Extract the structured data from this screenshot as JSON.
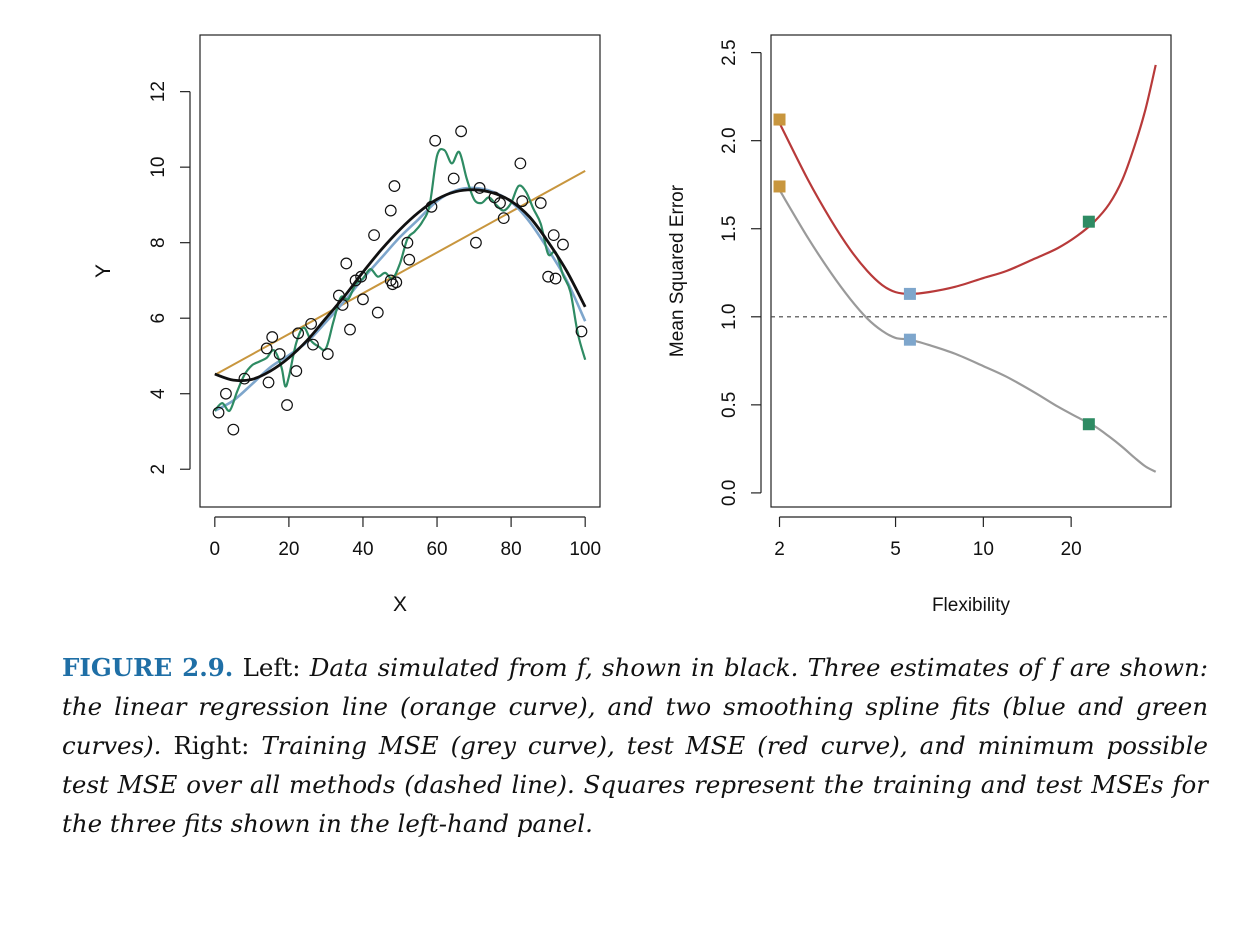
{
  "colors": {
    "orange": "#c8963e",
    "blue": "#7ea6cc",
    "green": "#2e8b63",
    "black": "#111111",
    "red": "#b83a3a",
    "grey": "#9a9a9a",
    "caption_label": "#1f6fa6"
  },
  "caption": {
    "label": "FIGURE 2.9.",
    "left_word": "Left:",
    "left_text": "Data simulated from f, shown in black. Three estimates of f are shown: the linear regression line (orange curve), and two smoothing spline fits (blue and green curves).",
    "right_word": "Right:",
    "right_text": "Training MSE (grey curve), test MSE (red curve), and minimum possible test MSE over all methods (dashed line). Squares represent the training and test MSEs for the three fits shown in the left-hand panel."
  },
  "chart_data": [
    {
      "type": "scatter",
      "xlabel": "X",
      "ylabel": "Y",
      "xlim": [
        -4,
        104
      ],
      "ylim": [
        1,
        13.5
      ],
      "xticks": [
        0,
        20,
        40,
        60,
        80,
        100
      ],
      "yticks": [
        2,
        4,
        6,
        8,
        10,
        12
      ],
      "points": [
        [
          1,
          3.5
        ],
        [
          3,
          4.0
        ],
        [
          5,
          3.05
        ],
        [
          8,
          4.4
        ],
        [
          14,
          5.2
        ],
        [
          14.5,
          4.3
        ],
        [
          15.5,
          5.5
        ],
        [
          17.5,
          5.05
        ],
        [
          19.5,
          3.7
        ],
        [
          22,
          4.6
        ],
        [
          22.5,
          5.6
        ],
        [
          26,
          5.85
        ],
        [
          26.5,
          5.3
        ],
        [
          30.5,
          5.05
        ],
        [
          33.5,
          6.6
        ],
        [
          34.5,
          6.35
        ],
        [
          35.5,
          7.45
        ],
        [
          36.5,
          5.7
        ],
        [
          38,
          7.0
        ],
        [
          39.5,
          7.1
        ],
        [
          40,
          6.5
        ],
        [
          43,
          8.2
        ],
        [
          44,
          6.15
        ],
        [
          47.5,
          8.85
        ],
        [
          47.5,
          7.0
        ],
        [
          48,
          6.9
        ],
        [
          48.5,
          9.5
        ],
        [
          49,
          6.95
        ],
        [
          52,
          8.0
        ],
        [
          52.5,
          7.55
        ],
        [
          58.5,
          8.95
        ],
        [
          59.5,
          10.7
        ],
        [
          64.5,
          9.7
        ],
        [
          66.5,
          10.95
        ],
        [
          70.5,
          8.0
        ],
        [
          71.5,
          9.45
        ],
        [
          75.5,
          9.2
        ],
        [
          77,
          9.05
        ],
        [
          78,
          8.65
        ],
        [
          82.5,
          10.1
        ],
        [
          83,
          9.1
        ],
        [
          88,
          9.05
        ],
        [
          90,
          7.1
        ],
        [
          91.5,
          8.2
        ],
        [
          92,
          7.05
        ],
        [
          94,
          7.95
        ],
        [
          99,
          5.65
        ]
      ],
      "series": [
        {
          "name": "f (true)",
          "color": "black",
          "x": [
            0,
            5,
            10,
            15,
            20,
            25,
            30,
            35,
            40,
            45,
            50,
            55,
            60,
            65,
            70,
            75,
            80,
            85,
            90,
            95,
            100
          ],
          "y": [
            4.52,
            4.36,
            4.38,
            4.6,
            4.95,
            5.42,
            6.0,
            6.58,
            7.22,
            7.82,
            8.35,
            8.8,
            9.15,
            9.35,
            9.4,
            9.32,
            9.1,
            8.68,
            8.02,
            7.25,
            6.3
          ]
        },
        {
          "name": "linear regression",
          "color": "orange",
          "x": [
            0,
            100
          ],
          "y": [
            4.5,
            9.9
          ]
        },
        {
          "name": "smoothing spline (blue)",
          "color": "blue",
          "x": [
            0,
            5,
            10,
            15,
            20,
            25,
            30,
            35,
            40,
            45,
            50,
            55,
            60,
            65,
            70,
            75,
            80,
            85,
            90,
            95,
            100
          ],
          "y": [
            3.55,
            3.82,
            4.25,
            4.7,
            5.02,
            5.38,
            5.9,
            6.45,
            7.05,
            7.6,
            8.15,
            8.62,
            9.1,
            9.38,
            9.45,
            9.35,
            9.08,
            8.55,
            7.82,
            7.0,
            5.92
          ]
        },
        {
          "name": "smoothing spline (green)",
          "color": "green",
          "x": [
            0,
            2,
            4,
            6,
            8,
            10,
            12,
            14,
            16,
            18,
            19,
            20,
            22,
            24,
            26,
            28,
            30,
            32,
            34,
            36,
            38,
            40,
            42,
            44,
            46,
            48,
            50,
            52,
            54,
            56,
            58,
            60,
            62,
            64,
            66,
            68,
            70,
            72,
            74,
            76,
            78,
            80,
            82,
            84,
            86,
            88,
            90,
            92,
            94,
            96,
            98,
            100
          ],
          "y": [
            3.55,
            3.75,
            3.55,
            4.05,
            4.5,
            4.75,
            4.85,
            4.95,
            5.15,
            4.7,
            4.2,
            4.45,
            5.35,
            5.75,
            5.4,
            5.25,
            5.2,
            5.9,
            6.55,
            6.5,
            6.9,
            7.05,
            7.3,
            7.1,
            7.2,
            7.05,
            7.45,
            8.1,
            8.3,
            8.55,
            9.0,
            10.3,
            10.45,
            10.1,
            10.4,
            9.7,
            9.15,
            9.05,
            9.2,
            9.0,
            8.85,
            9.05,
            9.5,
            9.35,
            8.9,
            8.5,
            7.7,
            7.75,
            7.15,
            6.7,
            5.6,
            4.9
          ]
        }
      ]
    },
    {
      "type": "line",
      "xlabel": "Flexibility",
      "ylabel": "Mean Squared Error",
      "x_scale": "log",
      "xlim": [
        1.87,
        44
      ],
      "ylim": [
        -0.08,
        2.6
      ],
      "xticks": [
        2,
        5,
        10,
        20
      ],
      "yticks": [
        0.0,
        0.5,
        1.0,
        1.5,
        2.0,
        2.5
      ],
      "dashed_line": 1.0,
      "series": [
        {
          "name": "Test MSE",
          "color": "red",
          "x": [
            2,
            2.5,
            3,
            3.5,
            4,
            4.5,
            5,
            5.6,
            6.5,
            8,
            10,
            12,
            15,
            18,
            21,
            24,
            27,
            30,
            33,
            36,
            39
          ],
          "y": [
            2.1,
            1.78,
            1.55,
            1.38,
            1.26,
            1.18,
            1.14,
            1.13,
            1.14,
            1.17,
            1.22,
            1.26,
            1.33,
            1.39,
            1.46,
            1.54,
            1.64,
            1.78,
            1.97,
            2.18,
            2.43
          ]
        },
        {
          "name": "Training MSE",
          "color": "grey",
          "x": [
            2,
            2.5,
            3,
            3.5,
            4,
            4.5,
            5,
            5.6,
            6.5,
            8,
            10,
            12,
            15,
            18,
            21,
            24,
            27,
            30,
            33,
            36,
            39
          ],
          "y": [
            1.72,
            1.45,
            1.25,
            1.1,
            0.99,
            0.92,
            0.88,
            0.87,
            0.84,
            0.79,
            0.72,
            0.66,
            0.57,
            0.49,
            0.43,
            0.38,
            0.32,
            0.26,
            0.2,
            0.15,
            0.12
          ]
        }
      ],
      "markers": [
        {
          "fit": "linear regression",
          "color": "orange",
          "x": 2,
          "train": 1.74,
          "test": 2.12
        },
        {
          "fit": "blue spline",
          "color": "blue",
          "x": 5.6,
          "train": 0.87,
          "test": 1.13
        },
        {
          "fit": "green spline",
          "color": "green",
          "x": 23,
          "train": 0.39,
          "test": 1.54
        }
      ]
    }
  ]
}
